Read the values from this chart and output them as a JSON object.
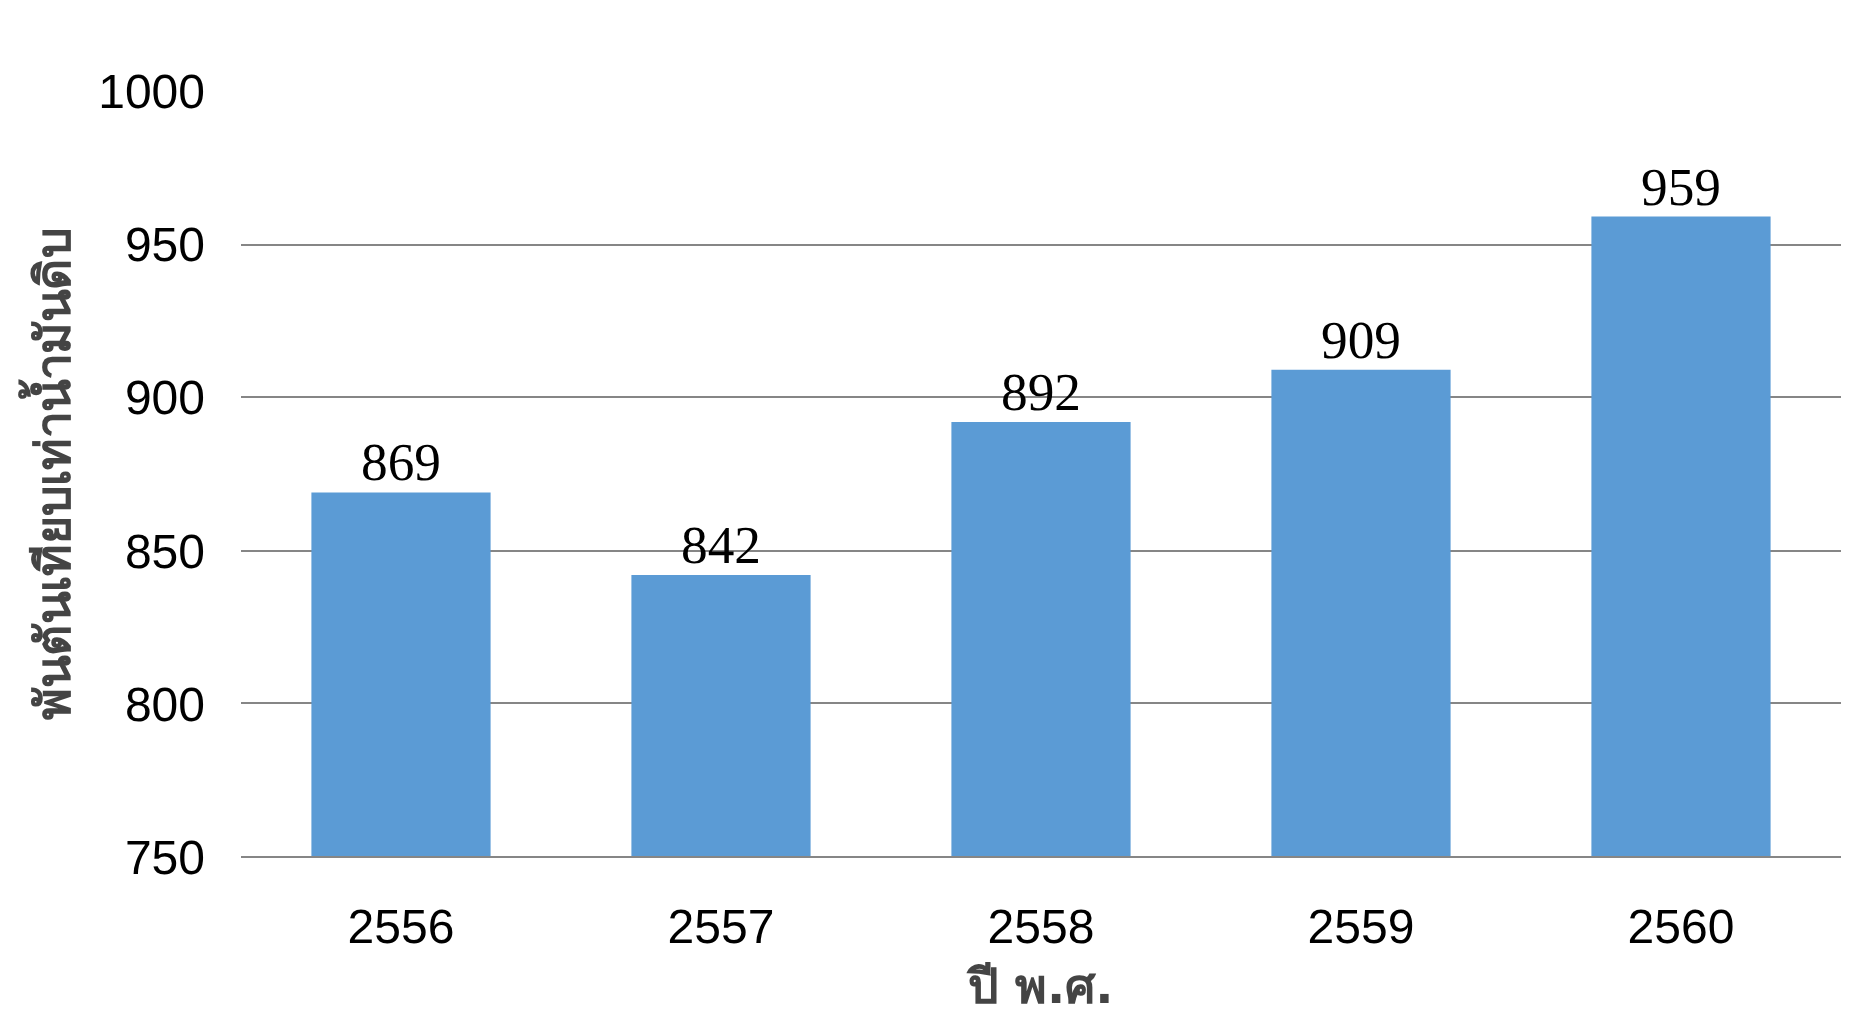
{
  "chart_data": {
    "type": "bar",
    "xlabel": "ปี พ.ศ.",
    "ylabel": "พันตันเทียบเท่าน้ำมันดิบ",
    "categories": [
      "2556",
      "2557",
      "2558",
      "2559",
      "2560"
    ],
    "values": [
      869,
      842,
      892,
      909,
      959
    ],
    "color": "#5b9bd5",
    "ylim": [
      750,
      1000
    ],
    "yticks": [
      750,
      800,
      850,
      900,
      950,
      1000
    ],
    "grid": "y",
    "data_labels": true
  }
}
